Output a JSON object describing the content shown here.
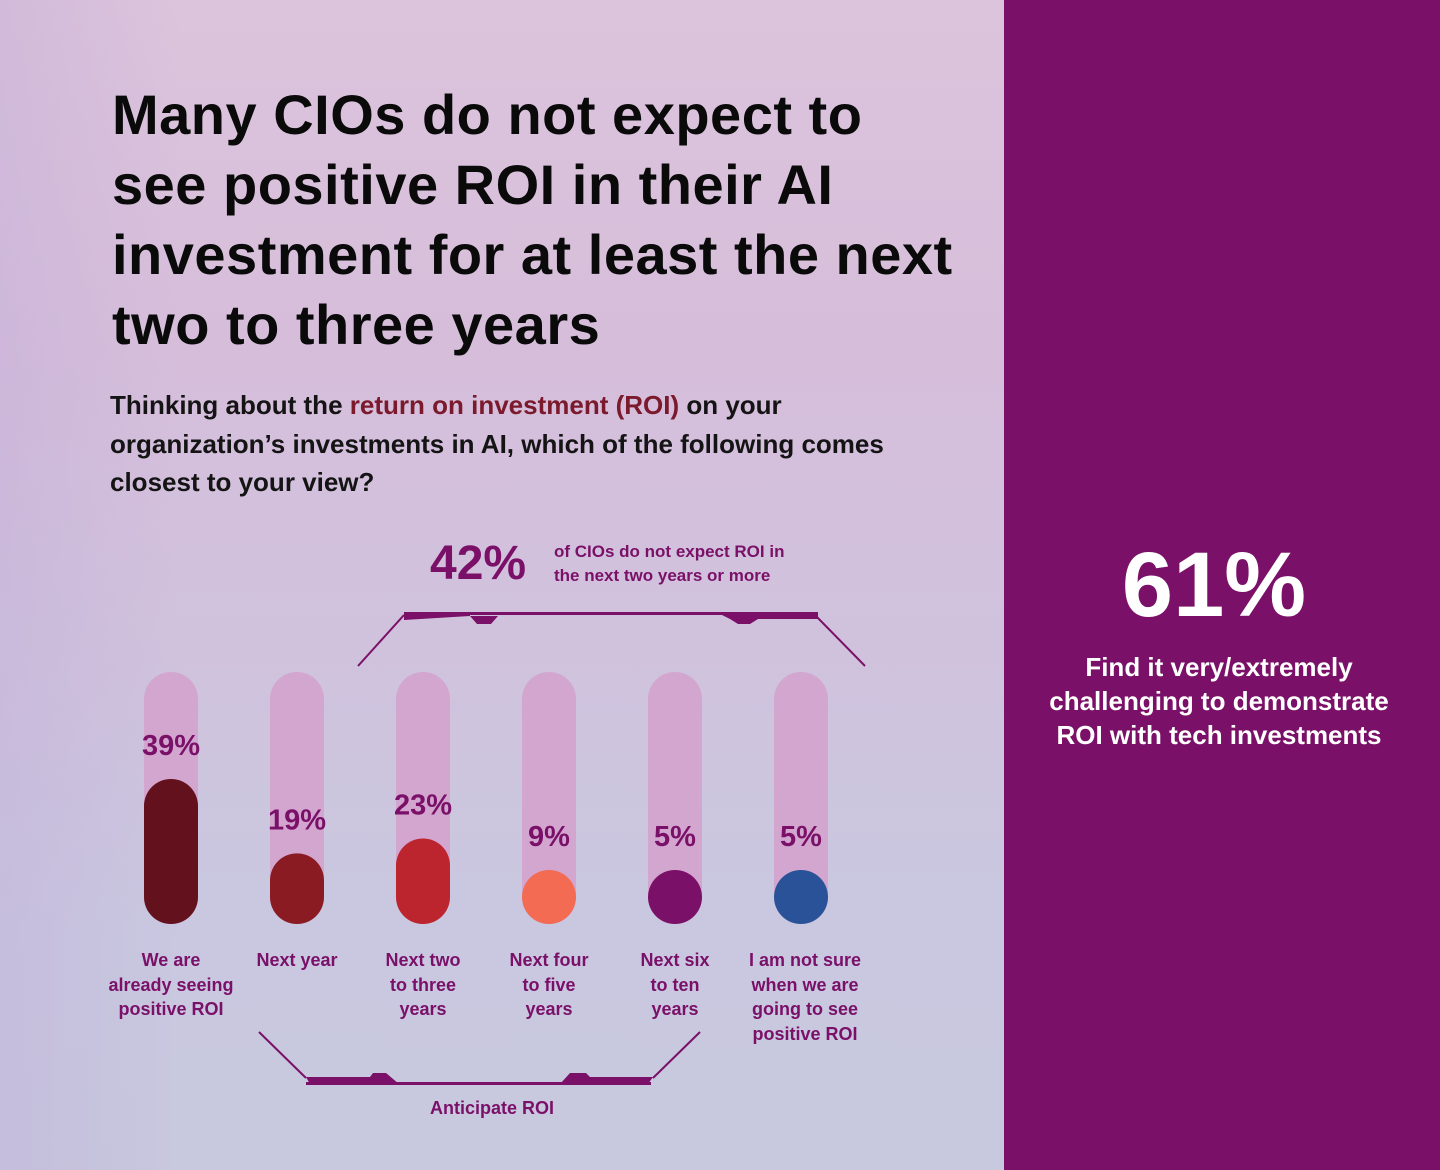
{
  "headline": "Many CIOs do not expect to see positive ROI in their AI investment for at least the next two to three years",
  "question": {
    "before": "Thinking about the ",
    "highlight": "return on investment (ROI)",
    "after": " on your organization’s investments in AI, which of the following comes closest to your view?"
  },
  "callout": {
    "value": "42%",
    "text_line1": "of CIOs do not expect ROI in",
    "text_line2": "the next two years or more"
  },
  "bracket_bottom_label": "Anticipate ROI",
  "side_stat": {
    "value": "61%",
    "text": "Find it very/extremely challenging to demonstrate ROI with tech investments"
  },
  "colors": {
    "brand_purple": "#7a1068",
    "track": "#d3a6d0",
    "highlight_text": "#7a1a2c"
  },
  "chart_data": {
    "type": "bar",
    "title": "Thinking about the return on investment (ROI) on your organization’s investments in AI, which of the following comes closest to your view?",
    "xlabel": "",
    "ylabel": "",
    "ylim": [
      0,
      100
    ],
    "grid": false,
    "categories": [
      "We are already seeing positive ROI",
      "Next year",
      "Next two to three years",
      "Next four to five years",
      "Next six to ten years",
      "I am not sure when we are going to see positive ROI"
    ],
    "category_lines": [
      [
        "We are",
        "already seeing",
        "positive ROI"
      ],
      [
        "Next year"
      ],
      [
        "Next two",
        "to three",
        "years"
      ],
      [
        "Next four",
        "to five",
        "years"
      ],
      [
        "Next six",
        "to ten",
        "years"
      ],
      [
        "I am not sure",
        "when we are",
        "going to see",
        "positive ROI"
      ]
    ],
    "values": [
      39,
      19,
      23,
      9,
      5,
      5
    ],
    "value_labels": [
      "39%",
      "19%",
      "23%",
      "9%",
      "5%",
      "5%"
    ],
    "bar_colors": [
      "#63111d",
      "#8a1b22",
      "#bc242e",
      "#f26b52",
      "#7a1068",
      "#2a5298"
    ],
    "annotations": [
      {
        "text": "42% of CIOs do not expect ROI in the next two years or more",
        "spans": [
          "Next two to three years",
          "Next four to five years",
          "Next six to ten years"
        ]
      },
      {
        "text": "Anticipate ROI",
        "spans": [
          "Next year",
          "Next two to three years",
          "Next four to five years",
          "Next six to ten years"
        ]
      }
    ]
  }
}
